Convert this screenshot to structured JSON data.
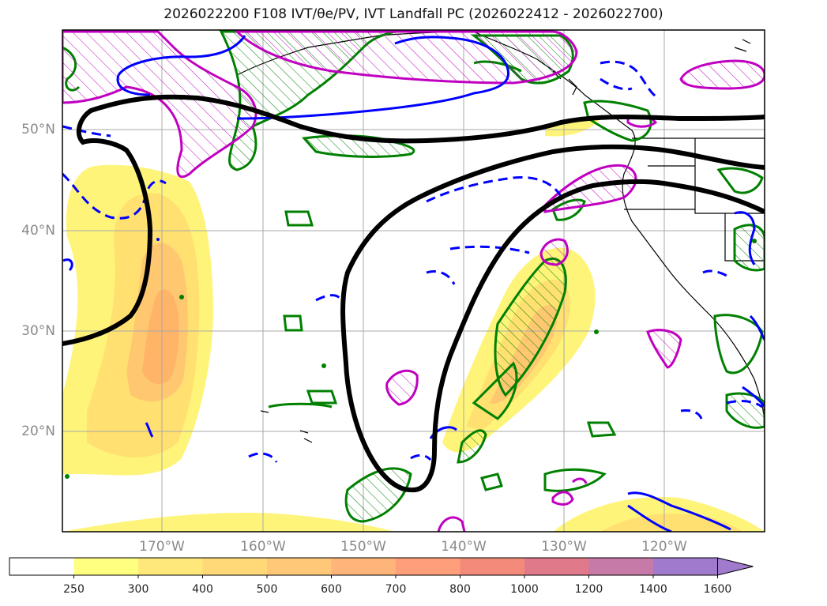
{
  "title": "2026022200 F108 IVT/θe/PV, IVT Landfall PC (2026022412 - 2026022700)",
  "map": {
    "lat_labels": [
      "50°N",
      "40°N",
      "30°N",
      "20°N"
    ],
    "lon_labels": [
      "170°W",
      "160°W",
      "150°W",
      "140°W",
      "130°W",
      "120°W"
    ],
    "extent": {
      "lon_min": -178,
      "lon_max": -108,
      "lat_min": 10,
      "lat_max": 60
    },
    "colors": {
      "pv_contour": "#0000ff",
      "theta_contour": "#008000",
      "hatch_contour": "#c000c0",
      "pc_line": "#000000"
    }
  },
  "colorbar": {
    "ticks": [
      "250",
      "300",
      "400",
      "500",
      "600",
      "700",
      "800",
      "1000",
      "1200",
      "1400",
      "1600"
    ],
    "colors": [
      "#ffffff",
      "#ffff80",
      "#ffe87a",
      "#ffd878",
      "#ffc878",
      "#ffb47a",
      "#ff9e7a",
      "#f48a7a",
      "#e07a8a",
      "#c67aa8",
      "#a07acc"
    ]
  }
}
